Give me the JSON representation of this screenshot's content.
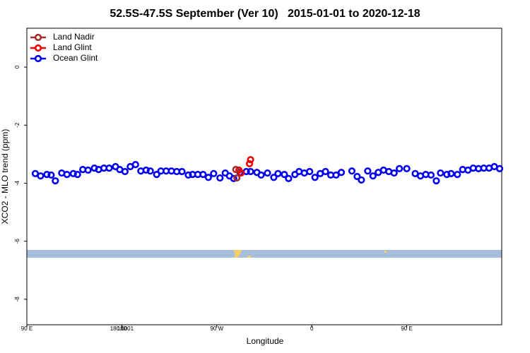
{
  "chart_data": {
    "type": "scatter",
    "title": "52.5S-47.5S September (Ver 10)   2015-01-01 to 2020-12-18",
    "x_label": "Longitude",
    "y_label": "XCO2 - MLO trend (ppm)",
    "xlim": [
      90,
      540
    ],
    "xticks": [
      {
        "value": 90,
        "label": "90 E"
      },
      180,
      {
        "value": 270,
        "label": "90 W"
      },
      {
        "value": 360,
        "label": "0"
      },
      {
        "value": 450,
        "label": "90 E"
      },
      180.0001
    ],
    "ylim": [
      -8.88,
      1.34
    ],
    "yticks": [
      0,
      -2,
      -4,
      -6,
      -8
    ],
    "legend": "top-left",
    "series": [
      {
        "name": "Land Nadir",
        "color": "#a52a2a",
        "x": [
          288,
          289
        ],
        "values": [
          -3.53,
          -3.82
        ]
      },
      {
        "name": "Land Glint",
        "color": "#ee0000",
        "x": [
          291,
          293,
          301,
          302
        ],
        "values": [
          -3.55,
          -3.65,
          -3.33,
          -3.19
        ]
      },
      {
        "name": "Ocean Glint",
        "color": "#0000ee",
        "x": [
          98,
          103,
          109,
          113,
          117,
          123,
          128,
          134,
          138,
          143,
          148,
          154,
          158,
          163,
          168,
          174,
          178,
          183,
          188,
          193,
          198,
          203,
          207,
          213,
          217,
          222,
          227,
          232,
          237,
          243,
          247,
          252,
          257,
          262,
          267,
          273,
          278,
          282,
          286,
          292,
          298,
          302,
          308,
          312,
          318,
          324,
          328,
          334,
          338,
          344,
          348,
          353,
          358,
          363,
          368,
          373,
          378,
          383,
          388,
          398,
          403,
          407,
          413,
          418,
          423,
          428,
          433,
          438,
          443,
          450,
          458,
          463,
          468,
          473,
          478,
          482,
          488,
          492,
          498,
          503,
          508,
          513,
          518,
          523,
          528,
          533,
          538
        ],
        "values": [
          -3.67,
          -3.75,
          -3.7,
          -3.72,
          -3.92,
          -3.65,
          -3.7,
          -3.67,
          -3.7,
          -3.53,
          -3.55,
          -3.48,
          -3.53,
          -3.48,
          -3.48,
          -3.43,
          -3.53,
          -3.6,
          -3.43,
          -3.36,
          -3.58,
          -3.55,
          -3.58,
          -3.7,
          -3.58,
          -3.58,
          -3.58,
          -3.6,
          -3.6,
          -3.72,
          -3.7,
          -3.7,
          -3.7,
          -3.8,
          -3.67,
          -3.82,
          -3.65,
          -3.75,
          -3.84,
          -3.63,
          -3.6,
          -3.6,
          -3.63,
          -3.72,
          -3.65,
          -3.8,
          -3.67,
          -3.7,
          -3.84,
          -3.7,
          -3.6,
          -3.65,
          -3.6,
          -3.8,
          -3.67,
          -3.6,
          -3.72,
          -3.72,
          -3.63,
          -3.58,
          -3.77,
          -3.89,
          -3.58,
          -3.75,
          -3.63,
          -3.55,
          -3.6,
          -3.65,
          -3.5,
          -3.5,
          -3.67,
          -3.75,
          -3.7,
          -3.72,
          -3.92,
          -3.65,
          -3.7,
          -3.67,
          -3.7,
          -3.53,
          -3.55,
          -3.48,
          -3.5,
          -3.48,
          -3.48,
          -3.43,
          -3.5
        ]
      }
    ]
  }
}
